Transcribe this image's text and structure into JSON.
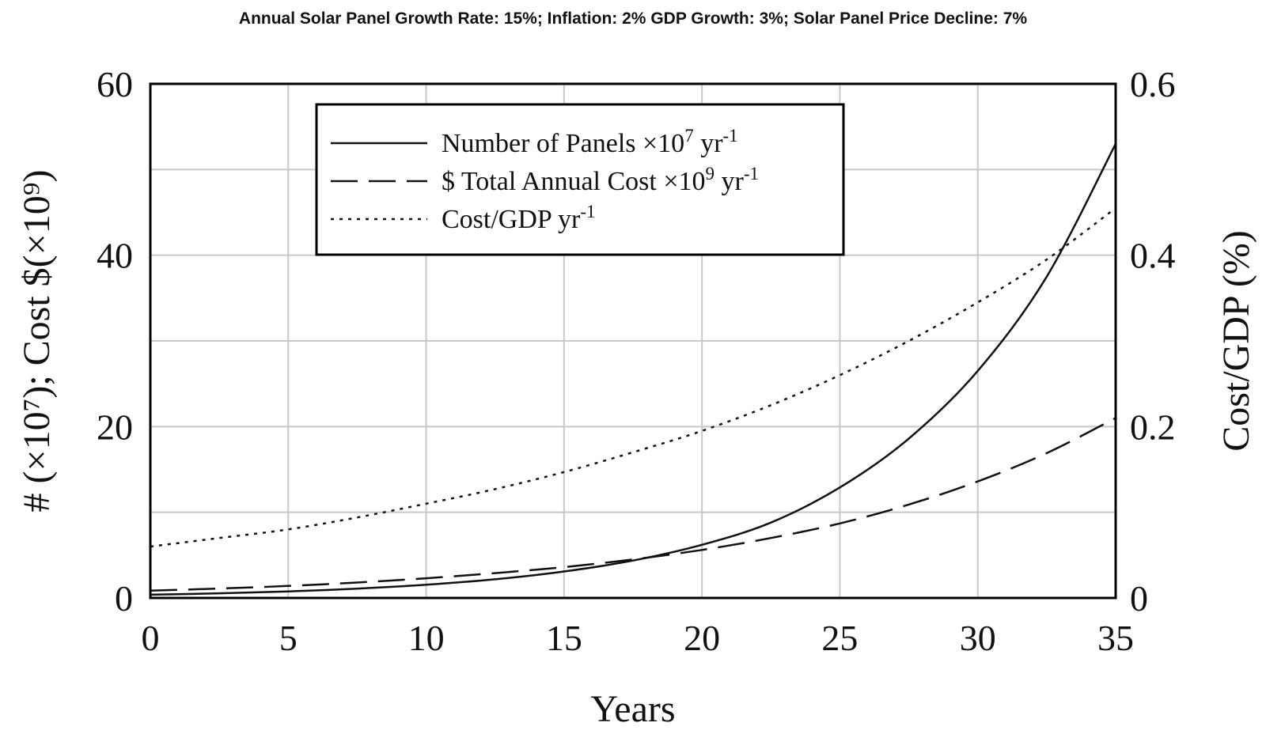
{
  "chart_data": {
    "type": "line",
    "title": "Annual Solar Panel Growth Rate: 15%; Inflation: 2% GDP Growth: 3%; Solar Panel Price Decline: 7%",
    "xlabel": "Years",
    "ylabel_left": "# (×10⁷); Cost $(×10⁹)",
    "ylabel_right": "Cost/GDP (%)",
    "xlim": [
      0,
      35
    ],
    "ylim_left": [
      0,
      60
    ],
    "ylim_right": [
      0,
      0.6
    ],
    "x_ticks": [
      "0",
      "5",
      "10",
      "15",
      "20",
      "25",
      "30",
      "35"
    ],
    "y_ticks_left": [
      "0",
      "20",
      "40",
      "60"
    ],
    "y_ticks_right": [
      "0",
      "0.2",
      "0.4",
      "0.6"
    ],
    "grid": true,
    "legend_position": "top-left",
    "x": [
      0,
      2.5,
      5,
      7.5,
      10,
      12.5,
      15,
      17.5,
      20,
      22.5,
      25,
      27.5,
      30,
      32.5,
      35
    ],
    "series": [
      {
        "name": "Number of Panels ×10⁷ yr⁻¹",
        "axis": "left",
        "style": "solid",
        "values": [
          0.38,
          0.54,
          0.77,
          1.09,
          1.54,
          2.18,
          3.09,
          4.37,
          6.2,
          8.8,
          12.9,
          18.6,
          26.5,
          37.5,
          53.0
        ]
      },
      {
        "name": "$ Total Annual Cost ×10⁹ yr⁻¹",
        "axis": "left",
        "style": "dashed",
        "values": [
          0.85,
          1.1,
          1.4,
          1.8,
          2.3,
          2.9,
          3.6,
          4.5,
          5.6,
          7.0,
          8.7,
          10.9,
          13.6,
          16.9,
          21.0
        ]
      },
      {
        "name": "Cost/GDP yr⁻¹",
        "axis": "right",
        "style": "dotted",
        "values": [
          0.06,
          0.07,
          0.08,
          0.094,
          0.11,
          0.127,
          0.147,
          0.17,
          0.195,
          0.225,
          0.26,
          0.3,
          0.345,
          0.395,
          0.455
        ]
      }
    ]
  }
}
